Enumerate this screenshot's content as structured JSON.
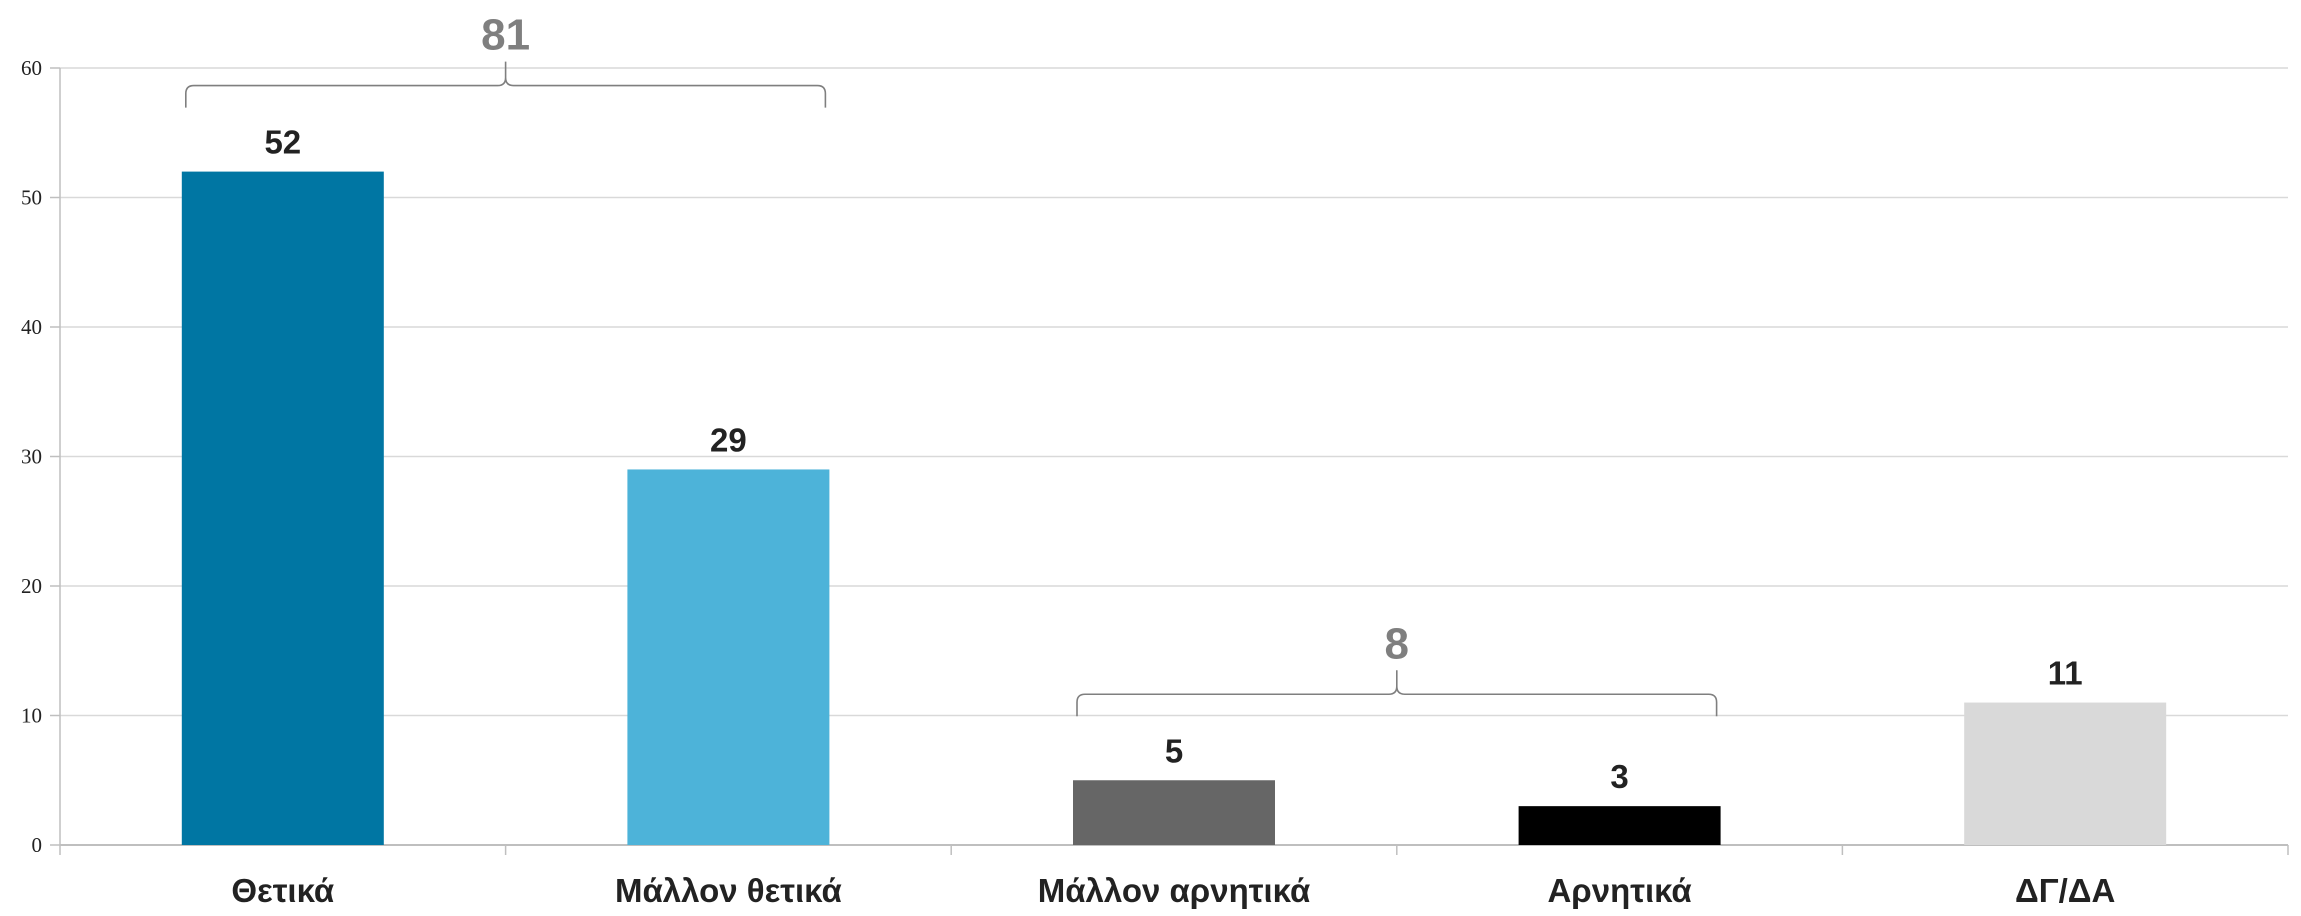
{
  "chart_data": {
    "type": "bar",
    "categories": [
      "Θετικά",
      "Μάλλον θετικά",
      "Μάλλον αρνητικά",
      "Αρνητικά",
      "ΔΓ/ΔΑ"
    ],
    "values": [
      52,
      29,
      5,
      3,
      11
    ],
    "colors": [
      "#0076a3",
      "#4db3d9",
      "#666666",
      "#000000",
      "#d9d9d9"
    ],
    "ylim": [
      0,
      60
    ],
    "yticks": [
      0,
      10,
      20,
      30,
      40,
      50,
      60
    ],
    "grid": true,
    "legend": "none",
    "brackets": [
      {
        "from": 0,
        "to": 1,
        "label": "81"
      },
      {
        "from": 2,
        "to": 3,
        "label": "8"
      }
    ]
  }
}
